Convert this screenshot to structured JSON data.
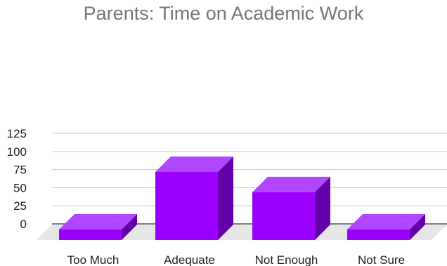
{
  "chart_data": {
    "type": "bar",
    "title": "Parents: Time on Academic Work",
    "categories": [
      "Too Much",
      "Adequate",
      "Not Enough",
      "Not Sure"
    ],
    "values": [
      -3,
      94,
      66,
      -4
    ],
    "ylim": [
      0,
      125
    ],
    "yticks": [
      0,
      25,
      50,
      75,
      100,
      125
    ],
    "xlabel": "",
    "ylabel": "",
    "grid": true,
    "style": "3d-column",
    "colors": {
      "front": "#9b00ff",
      "top": "#b046ff",
      "side": "#6400a8",
      "floor": "#e6e6e6",
      "grid": "#cccccc",
      "axis": "#333333"
    }
  }
}
